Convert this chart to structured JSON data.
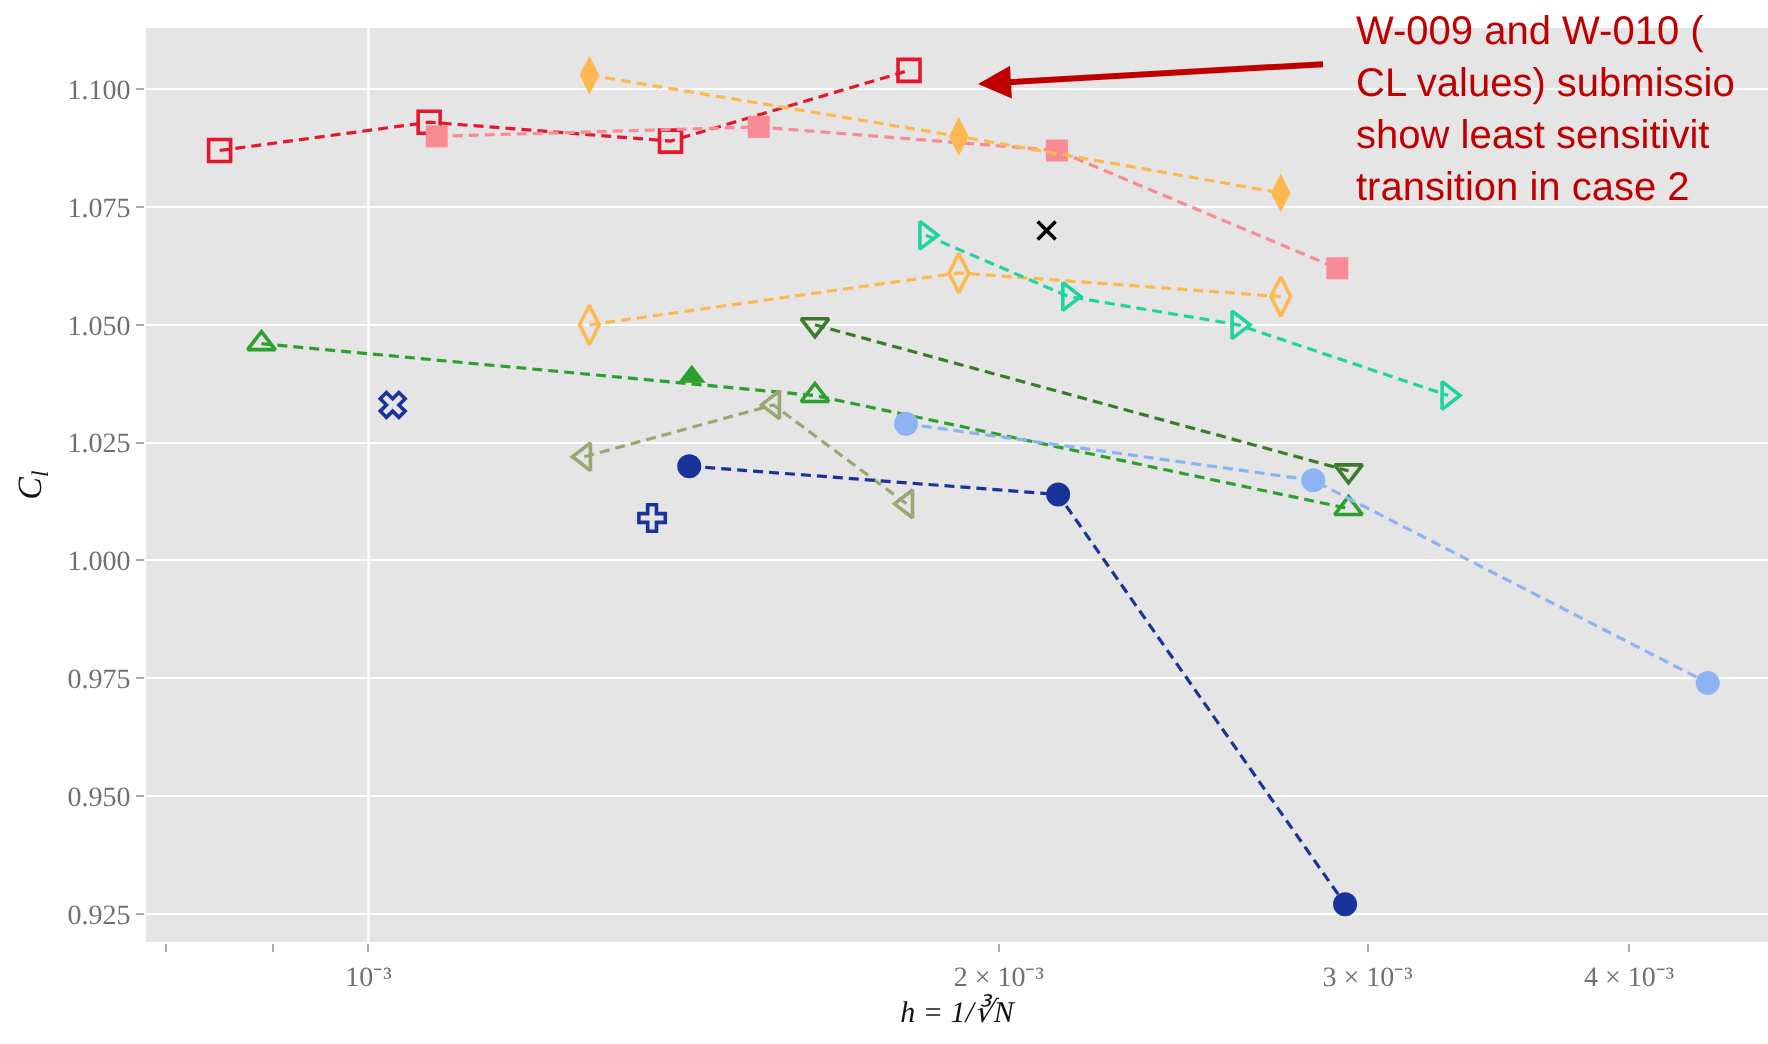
{
  "chart_data": {
    "type": "line",
    "xlabel": "h = 1/∛N",
    "ylabel": "C$_{l}$",
    "log": "x",
    "grid": "y",
    "line_style": "dashed",
    "xlim": [
      0.000783,
      0.00466
    ],
    "xticks": [
      {
        "value": 0.0008,
        "label": null
      },
      {
        "value": 0.0009,
        "label": null
      },
      {
        "value": 0.001,
        "label": "10⁻³"
      },
      {
        "value": 0.002,
        "label": "2 × 10⁻³"
      },
      {
        "value": 0.003,
        "label": "3 × 10⁻³"
      },
      {
        "value": 0.004,
        "label": "4 × 10⁻³"
      }
    ],
    "ylim": [
      0.919,
      1.113
    ],
    "yticks": [
      0.925,
      {
        "value": 0.95,
        "label": "0.950"
      },
      0.975,
      {
        "value": 1.0,
        "label": "1.000"
      },
      1.025,
      {
        "value": 1.05,
        "label": "1.050"
      },
      1.075,
      {
        "value": 1.1,
        "label": "1.100"
      }
    ],
    "ref_lines": [
      {
        "axis": "x",
        "value": 0.001,
        "color": "#ffffff"
      }
    ],
    "series": [
      {
        "color": "#e6162d",
        "marker": "square-open",
        "x": [
          0.000849,
          0.001069,
          0.001394,
          0.001812
        ],
        "values": [
          1.087,
          1.093,
          1.089,
          1.104
        ]
      },
      {
        "color": "#f98b95",
        "marker": "square",
        "x": [
          0.001078,
          0.001536,
          0.002132,
          0.002902
        ],
        "values": [
          1.09,
          1.092,
          1.087,
          1.062
        ]
      },
      {
        "color": "#fdb84f",
        "marker": "diamond",
        "x": [
          0.001275,
          0.001914,
          0.002727
        ],
        "values": [
          1.103,
          1.09,
          1.078
        ]
      },
      {
        "color": "#fdb84f",
        "marker": "diamond-open",
        "x": [
          0.001275,
          0.001914,
          0.002727
        ],
        "values": [
          1.05,
          1.061,
          1.056
        ]
      },
      {
        "color": "#20d4a0",
        "marker": "triangle-right-open",
        "x": [
          0.001846,
          0.00216,
          0.002602,
          0.003278
        ],
        "values": [
          1.069,
          1.056,
          1.05,
          1.035
        ]
      },
      {
        "type": "scatter",
        "color": "#000000",
        "marker": "x",
        "x": [
          0.002108
        ],
        "values": [
          1.07
        ]
      },
      {
        "color": "#3b7a2b",
        "marker": "triangle-down-open",
        "x": [
          0.001634,
          0.002938
        ],
        "values": [
          1.05,
          1.019
        ]
      },
      {
        "color": "#2ca02c",
        "marker": "triangle-up-open",
        "x": [
          0.000889,
          0.001634,
          0.002938
        ],
        "values": [
          1.046,
          1.035,
          1.011
        ]
      },
      {
        "type": "scatter",
        "color": "#2ca02c",
        "marker": "triangle-up",
        "x": [
          0.001427
        ],
        "values": [
          1.039
        ]
      },
      {
        "color": "#9aa673",
        "marker": "triangle-left-open",
        "x": [
          0.001268,
          0.001561,
          0.001807
        ],
        "values": [
          1.022,
          1.033,
          1.012
        ]
      },
      {
        "color": "#1a3399",
        "marker": "circle",
        "x": [
          0.001423,
          0.002135,
          0.002927
        ],
        "values": [
          1.02,
          1.014,
          0.927
        ]
      },
      {
        "color": "#8db3f3",
        "marker": "circle",
        "x": [
          0.001806,
          0.002826,
          0.004361
        ],
        "values": [
          1.029,
          1.017,
          0.974
        ]
      },
      {
        "type": "scatter",
        "color": "#1a3399",
        "marker": "cross",
        "x": [
          0.001027
        ],
        "values": [
          1.033
        ]
      },
      {
        "type": "scatter",
        "color": "#1a3399",
        "marker": "cross-open",
        "x": [
          0.001366
        ],
        "values": [
          1.009
        ]
      }
    ],
    "annotations": [
      "W-009 and W-010 (\nCL values) submissio\nshow least sensitivit\ntransition in case 2"
    ]
  }
}
